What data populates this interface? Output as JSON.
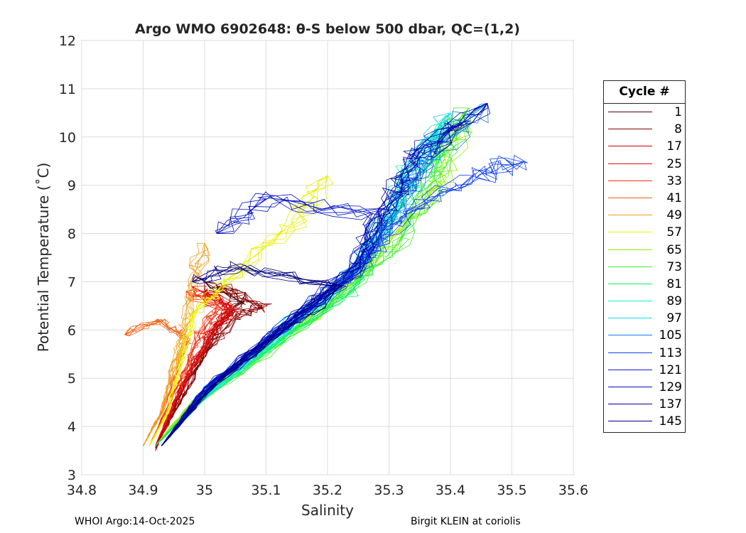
{
  "chart_data": {
    "type": "line",
    "title": "Argo WMO 6902648: θ-S below 500 dbar,  QC=(1,2)",
    "xlabel": "Salinity",
    "ylabel": "Potential Temperature (˚C)",
    "xlim": [
      34.8,
      35.6
    ],
    "ylim": [
      3,
      12
    ],
    "xticks": [
      "34.8",
      "34.9",
      "35",
      "35.1",
      "35.2",
      "35.3",
      "35.4",
      "35.5",
      "35.6"
    ],
    "yticks": [
      "3",
      "4",
      "5",
      "6",
      "7",
      "8",
      "9",
      "10",
      "11",
      "12"
    ],
    "grid": true,
    "legend_title": "Cycle #",
    "legend_placement": "right-outside",
    "series": [
      {
        "name": "1",
        "color": "#5a0000",
        "S": [
          34.92,
          34.95,
          34.99,
          35.03,
          35.06,
          35.0
        ],
        "T": [
          3.55,
          4.4,
          5.4,
          6.2,
          6.6,
          7.0
        ]
      },
      {
        "name": "8",
        "color": "#8a0000",
        "S": [
          34.92,
          34.96,
          35.0,
          35.05,
          35.1,
          35.02
        ],
        "T": [
          3.6,
          4.5,
          5.5,
          6.3,
          6.5,
          6.9
        ]
      },
      {
        "name": "17",
        "color": "#d00000",
        "S": [
          34.92,
          34.95,
          34.98,
          35.02,
          35.04,
          35.0
        ],
        "T": [
          3.5,
          4.4,
          5.3,
          6.1,
          6.5,
          6.8
        ]
      },
      {
        "name": "25",
        "color": "#e01010",
        "S": [
          34.92,
          34.95,
          34.99,
          35.01,
          35.05,
          34.98
        ],
        "T": [
          3.6,
          4.5,
          5.4,
          6.0,
          6.4,
          6.9
        ]
      },
      {
        "name": "33",
        "color": "#f03010",
        "S": [
          34.91,
          34.94,
          34.97,
          34.99,
          35.02,
          34.97
        ],
        "T": [
          3.6,
          4.4,
          5.2,
          5.9,
          6.5,
          6.8
        ]
      },
      {
        "name": "41",
        "color": "#f06010",
        "S": [
          34.9,
          34.93,
          34.95,
          34.97,
          34.93,
          34.87
        ],
        "T": [
          3.6,
          4.3,
          5.0,
          5.8,
          6.2,
          5.9
        ]
      },
      {
        "name": "49",
        "color": "#f0a020",
        "S": [
          34.9,
          34.93,
          34.95,
          34.97,
          34.98,
          35.0
        ],
        "T": [
          3.6,
          4.3,
          5.3,
          6.2,
          7.0,
          7.8
        ]
      },
      {
        "name": "57",
        "color": "#e8f000",
        "S": [
          34.91,
          34.94,
          34.96,
          34.98,
          35.05,
          35.15,
          35.2
        ],
        "T": [
          3.6,
          4.3,
          5.3,
          6.3,
          7.2,
          8.3,
          9.2
        ]
      },
      {
        "name": "65",
        "color": "#90f000",
        "S": [
          34.92,
          34.98,
          35.08,
          35.2,
          35.3,
          35.38,
          35.42
        ],
        "T": [
          3.6,
          4.5,
          5.4,
          6.5,
          7.8,
          9.0,
          10.5
        ]
      },
      {
        "name": "73",
        "color": "#40f030",
        "S": [
          34.92,
          34.98,
          35.1,
          35.22,
          35.32,
          35.38,
          35.43
        ],
        "T": [
          3.6,
          4.4,
          5.5,
          6.7,
          7.8,
          9.2,
          10.6
        ]
      },
      {
        "name": "81",
        "color": "#10f060",
        "S": [
          34.92,
          34.99,
          35.1,
          35.24,
          35.3,
          35.36,
          35.4
        ],
        "T": [
          3.6,
          4.5,
          5.6,
          6.8,
          8.2,
          9.3,
          10.4
        ]
      },
      {
        "name": "89",
        "color": "#10f0c0",
        "S": [
          34.93,
          35.0,
          35.12,
          35.22,
          35.28,
          35.33,
          35.38
        ],
        "T": [
          3.6,
          4.6,
          5.8,
          6.9,
          8.0,
          9.2,
          10.2
        ]
      },
      {
        "name": "97",
        "color": "#10d8f0",
        "S": [
          34.93,
          35.0,
          35.12,
          35.24,
          35.3,
          35.34,
          35.4
        ],
        "T": [
          3.6,
          4.7,
          6.0,
          7.2,
          8.3,
          9.4,
          10.5
        ]
      },
      {
        "name": "105",
        "color": "#1080f0",
        "S": [
          34.93,
          35.0,
          35.13,
          35.25,
          35.32,
          35.36,
          35.46
        ],
        "T": [
          3.6,
          4.8,
          6.0,
          7.3,
          8.5,
          9.5,
          10.7
        ]
      },
      {
        "name": "113",
        "color": "#1040f0",
        "S": [
          34.93,
          35.01,
          35.14,
          35.26,
          35.33,
          35.45,
          35.52
        ],
        "T": [
          3.6,
          4.8,
          6.1,
          7.4,
          8.5,
          9.2,
          9.5
        ]
      },
      {
        "name": "121",
        "color": "#1020d0",
        "S": [
          34.93,
          35.0,
          35.12,
          35.25,
          35.3,
          35.35,
          35.42
        ],
        "T": [
          3.6,
          4.8,
          6.0,
          7.2,
          8.4,
          9.6,
          10.3
        ]
      },
      {
        "name": "129",
        "color": "#0010c0",
        "S": [
          34.93,
          35.0,
          35.12,
          35.24,
          35.28,
          35.1,
          35.02
        ],
        "T": [
          3.6,
          4.8,
          6.0,
          7.3,
          8.4,
          8.7,
          8.0
        ]
      },
      {
        "name": "137",
        "color": "#0000a0",
        "S": [
          34.93,
          35.01,
          35.13,
          35.25,
          35.3,
          35.34,
          35.46
        ],
        "T": [
          3.6,
          4.8,
          6.1,
          7.3,
          8.6,
          9.6,
          10.7
        ]
      },
      {
        "name": "145",
        "color": "#000080",
        "S": [
          34.93,
          35.0,
          35.12,
          35.22,
          35.05,
          34.98
        ],
        "T": [
          3.6,
          4.7,
          5.9,
          6.9,
          7.3,
          7.0
        ]
      }
    ]
  },
  "footer": {
    "left": "WHOI Argo:14-Oct-2025",
    "right": "Birgit KLEIN at coriolis"
  }
}
